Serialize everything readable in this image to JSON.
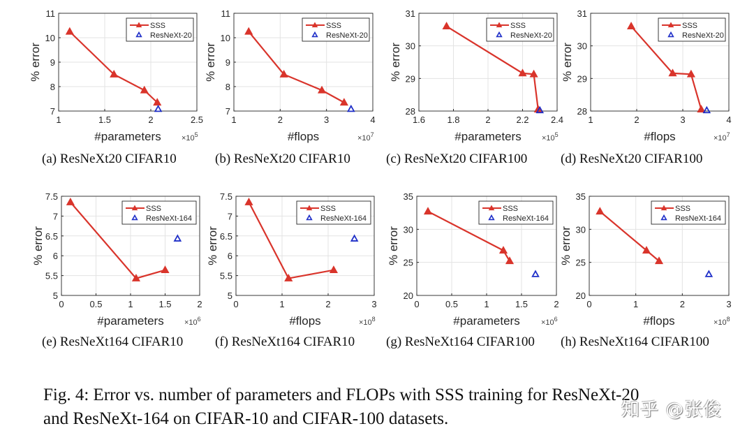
{
  "chart_data": [
    {
      "type": "line",
      "panel_label": "(a)",
      "caption": "ResNeXt20 CIFAR10",
      "xlabel": "#parameters",
      "x_multiplier": "×10^5",
      "x_exp": "5",
      "ylabel": "% error",
      "xlim": [
        1,
        2.5
      ],
      "ylim": [
        7,
        11
      ],
      "xticks": [
        1,
        1.5,
        2,
        2.5
      ],
      "xtick_labels": [
        "1",
        "1.5",
        "2",
        "2.5"
      ],
      "yticks": [
        7,
        8,
        9,
        10,
        11
      ],
      "ytick_labels": [
        "7",
        "8",
        "9",
        "10",
        "11"
      ],
      "grid": true,
      "legend_position": "top-right",
      "series": [
        {
          "name": "SSS",
          "style": "line+triangle",
          "color": "#d9342b",
          "x": [
            1.12,
            1.6,
            1.93,
            2.07
          ],
          "y": [
            10.25,
            8.5,
            7.85,
            7.35
          ]
        },
        {
          "name": "ResNeXt-20",
          "style": "triangle-open",
          "color": "#1f2fc8",
          "x": [
            2.08
          ],
          "y": [
            7.08
          ]
        }
      ]
    },
    {
      "type": "line",
      "panel_label": "(b)",
      "caption": "ResNeXt20 CIFAR10",
      "xlabel": "#flops",
      "x_multiplier": "×10^7",
      "x_exp": "7",
      "ylabel": "% error",
      "xlim": [
        1,
        4
      ],
      "ylim": [
        7,
        11
      ],
      "xticks": [
        1,
        2,
        3,
        4
      ],
      "xtick_labels": [
        "1",
        "2",
        "3",
        "4"
      ],
      "yticks": [
        7,
        8,
        9,
        10,
        11
      ],
      "ytick_labels": [
        "7",
        "8",
        "9",
        "10",
        "11"
      ],
      "grid": true,
      "legend_position": "top-right",
      "series": [
        {
          "name": "SSS",
          "style": "line+triangle",
          "color": "#d9342b",
          "x": [
            1.32,
            2.08,
            2.9,
            3.38
          ],
          "y": [
            10.25,
            8.5,
            7.85,
            7.35
          ]
        },
        {
          "name": "ResNeXt-20",
          "style": "triangle-open",
          "color": "#1f2fc8",
          "x": [
            3.53
          ],
          "y": [
            7.08
          ]
        }
      ]
    },
    {
      "type": "line",
      "panel_label": "(c)",
      "caption": "ResNeXt20 CIFAR100",
      "xlabel": "#parameters",
      "x_multiplier": "×10^5",
      "x_exp": "5",
      "ylabel": "% error",
      "xlim": [
        1.6,
        2.4
      ],
      "ylim": [
        28,
        31
      ],
      "xticks": [
        1.6,
        1.8,
        2,
        2.2,
        2.4
      ],
      "xtick_labels": [
        "1.6",
        "1.8",
        "2",
        "2.2",
        "2.4"
      ],
      "yticks": [
        28,
        29,
        30,
        31
      ],
      "ytick_labels": [
        "28",
        "29",
        "30",
        "31"
      ],
      "grid": true,
      "legend_position": "top-right",
      "series": [
        {
          "name": "SSS",
          "style": "line+triangle",
          "color": "#d9342b",
          "x": [
            1.76,
            2.2,
            2.265,
            2.29
          ],
          "y": [
            30.6,
            29.16,
            29.13,
            28.05
          ]
        },
        {
          "name": "ResNeXt-20",
          "style": "triangle-open",
          "color": "#1f2fc8",
          "x": [
            2.3
          ],
          "y": [
            28.02
          ]
        }
      ]
    },
    {
      "type": "line",
      "panel_label": "(d)",
      "caption": "ResNeXt20 CIFAR100",
      "xlabel": "#flops",
      "x_multiplier": "×10^7",
      "x_exp": "7",
      "ylabel": "% error",
      "xlim": [
        1,
        4
      ],
      "ylim": [
        28,
        31
      ],
      "xticks": [
        1,
        2,
        3,
        4
      ],
      "xtick_labels": [
        "1",
        "2",
        "3",
        "4"
      ],
      "yticks": [
        28,
        29,
        30,
        31
      ],
      "ytick_labels": [
        "28",
        "29",
        "30",
        "31"
      ],
      "grid": true,
      "legend_position": "top-right",
      "series": [
        {
          "name": "SSS",
          "style": "line+triangle",
          "color": "#d9342b",
          "x": [
            1.88,
            2.78,
            3.18,
            3.4
          ],
          "y": [
            30.6,
            29.16,
            29.13,
            28.05
          ]
        },
        {
          "name": "ResNeXt-20",
          "style": "triangle-open",
          "color": "#1f2fc8",
          "x": [
            3.52
          ],
          "y": [
            28.02
          ]
        }
      ]
    },
    {
      "type": "line",
      "panel_label": "(e)",
      "caption": "ResNeXt164 CIFAR10",
      "xlabel": "#parameters",
      "x_multiplier": "×10^6",
      "x_exp": "6",
      "ylabel": "% error",
      "xlim": [
        0,
        2
      ],
      "ylim": [
        5,
        7.5
      ],
      "xticks": [
        0,
        0.5,
        1,
        1.5,
        2
      ],
      "xtick_labels": [
        "0",
        "0.5",
        "1",
        "1.5",
        "2"
      ],
      "yticks": [
        5,
        5.5,
        6,
        6.5,
        7,
        7.5
      ],
      "ytick_labels": [
        "5",
        "5.5",
        "6",
        "6.5",
        "7",
        "7.5"
      ],
      "grid": true,
      "legend_position": "top-right",
      "series": [
        {
          "name": "SSS",
          "style": "line+triangle",
          "color": "#d9342b",
          "x": [
            0.13,
            1.08,
            1.5
          ],
          "y": [
            7.35,
            5.43,
            5.64
          ]
        },
        {
          "name": "ResNeXt-164",
          "style": "triangle-open",
          "color": "#1f2fc8",
          "x": [
            1.68
          ],
          "y": [
            6.43
          ]
        }
      ]
    },
    {
      "type": "line",
      "panel_label": "(f)",
      "caption": "ResNeXt164 CIFAR10",
      "xlabel": "#flops",
      "x_multiplier": "×10^8",
      "x_exp": "8",
      "ylabel": "% error",
      "xlim": [
        0,
        3
      ],
      "ylim": [
        5,
        7.5
      ],
      "xticks": [
        0,
        1,
        2,
        3
      ],
      "xtick_labels": [
        "0",
        "1",
        "2",
        "3"
      ],
      "yticks": [
        5,
        5.5,
        6,
        6.5,
        7,
        7.5
      ],
      "ytick_labels": [
        "5",
        "5.5",
        "6",
        "6.5",
        "7",
        "7.5"
      ],
      "grid": true,
      "legend_position": "top-right",
      "series": [
        {
          "name": "SSS",
          "style": "line+triangle",
          "color": "#d9342b",
          "x": [
            0.28,
            1.14,
            2.12
          ],
          "y": [
            7.35,
            5.43,
            5.64
          ]
        },
        {
          "name": "ResNeXt-164",
          "style": "triangle-open",
          "color": "#1f2fc8",
          "x": [
            2.57
          ],
          "y": [
            6.43
          ]
        }
      ]
    },
    {
      "type": "line",
      "panel_label": "(g)",
      "caption": "ResNeXt164 CIFAR100",
      "xlabel": "#parameters",
      "x_multiplier": "×10^6",
      "x_exp": "6",
      "ylabel": "% error",
      "xlim": [
        0,
        2
      ],
      "ylim": [
        20,
        35
      ],
      "xticks": [
        0,
        0.5,
        1,
        1.5,
        2
      ],
      "xtick_labels": [
        "0",
        "0.5",
        "1",
        "1.5",
        "2"
      ],
      "yticks": [
        20,
        25,
        30,
        35
      ],
      "ytick_labels": [
        "20",
        "25",
        "30",
        "35"
      ],
      "grid": true,
      "legend_position": "top-right",
      "series": [
        {
          "name": "SSS",
          "style": "line+triangle",
          "color": "#d9342b",
          "x": [
            0.16,
            1.24,
            1.33
          ],
          "y": [
            32.7,
            26.8,
            25.2
          ]
        },
        {
          "name": "ResNeXt-164",
          "style": "triangle-open",
          "color": "#1f2fc8",
          "x": [
            1.7
          ],
          "y": [
            23.2
          ]
        }
      ]
    },
    {
      "type": "line",
      "panel_label": "(h)",
      "caption": "ResNeXt164 CIFAR100",
      "xlabel": "#flops",
      "x_multiplier": "×10^8",
      "x_exp": "8",
      "ylabel": "% error",
      "xlim": [
        0,
        3
      ],
      "ylim": [
        20,
        35
      ],
      "xticks": [
        0,
        1,
        2,
        3
      ],
      "xtick_labels": [
        "0",
        "1",
        "2",
        "3"
      ],
      "yticks": [
        20,
        25,
        30,
        35
      ],
      "ytick_labels": [
        "20",
        "25",
        "30",
        "35"
      ],
      "grid": true,
      "legend_position": "top-right",
      "series": [
        {
          "name": "SSS",
          "style": "line+triangle",
          "color": "#d9342b",
          "x": [
            0.23,
            1.23,
            1.5
          ],
          "y": [
            32.7,
            26.8,
            25.2
          ]
        },
        {
          "name": "ResNeXt-164",
          "style": "triangle-open",
          "color": "#1f2fc8",
          "x": [
            2.57
          ],
          "y": [
            23.2
          ]
        }
      ]
    }
  ],
  "figure_caption": {
    "line1": "Fig. 4: Error vs. number of parameters and FLOPs with SSS training for ResNeXt-20",
    "line2": "and ResNeXt-164 on CIFAR-10 and CIFAR-100 datasets."
  },
  "watermark": "知乎 @张俊"
}
